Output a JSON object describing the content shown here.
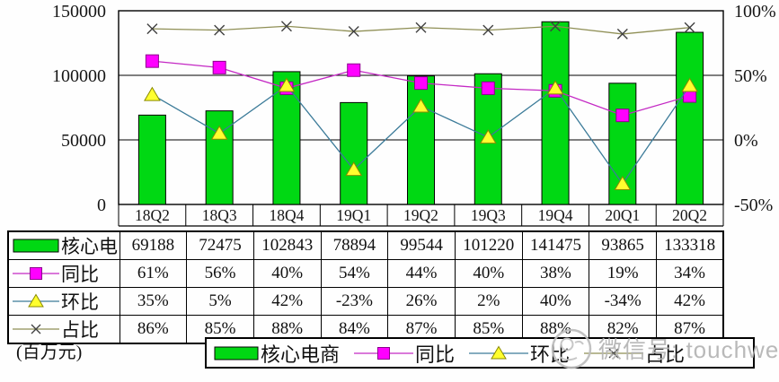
{
  "unit_label": "(百万元)",
  "watermark": {
    "icon": "wechat-stamp-icon",
    "text": "微信号: touchweb"
  },
  "chart_data": {
    "type": "bar+line combo",
    "categories": [
      "18Q2",
      "18Q3",
      "18Q4",
      "19Q1",
      "19Q2",
      "19Q3",
      "19Q4",
      "20Q1",
      "20Q2"
    ],
    "series": [
      {
        "name": "核心电商",
        "type": "bar",
        "axis": "left",
        "marker": "bar",
        "values": [
          69188,
          72475,
          102843,
          78894,
          99544,
          101220,
          141475,
          93865,
          133318
        ],
        "color": "#00d813",
        "edge_color": "#000000"
      },
      {
        "name": "同比",
        "type": "line",
        "axis": "right",
        "marker": "square",
        "values": [
          61,
          56,
          40,
          54,
          44,
          40,
          38,
          19,
          34
        ],
        "line_color": "#c429c4",
        "marker_color": "#ff00ff",
        "marker_edge": "#8b008b"
      },
      {
        "name": "环比",
        "type": "line",
        "axis": "right",
        "marker": "triangle",
        "values": [
          35,
          5,
          42,
          -23,
          26,
          2,
          40,
          -34,
          42
        ],
        "line_color": "#3c7b99",
        "marker_color": "#ffff2e",
        "marker_edge": "#8a8a00"
      },
      {
        "name": "占比",
        "type": "line",
        "axis": "right",
        "marker": "x",
        "values": [
          86,
          85,
          88,
          84,
          87,
          85,
          88,
          82,
          87
        ],
        "line_color": "#8f8f55",
        "marker_color": "#404040"
      }
    ],
    "left_axis": {
      "min": 0,
      "max": 150000,
      "ticks": [
        0,
        50000,
        100000,
        150000
      ],
      "tick_labels": [
        "0",
        "50000",
        "100000",
        "150000"
      ]
    },
    "right_axis": {
      "min": -50,
      "max": 100,
      "ticks": [
        -50,
        0,
        50,
        100
      ],
      "tick_labels": [
        "-50%",
        "0%",
        "50%",
        "100%"
      ]
    },
    "grid": true,
    "legend_position": "bottom"
  },
  "table": {
    "row_labels": [
      "核心电",
      "同比",
      "环比",
      "占比"
    ],
    "rows": [
      [
        "69188",
        "72475",
        "102843",
        "78894",
        "99544",
        "101220",
        "141475",
        "93865",
        "133318"
      ],
      [
        "61%",
        "56%",
        "40%",
        "54%",
        "44%",
        "40%",
        "38%",
        "19%",
        "34%"
      ],
      [
        "35%",
        "5%",
        "42%",
        "-23%",
        "26%",
        "2%",
        "40%",
        "-34%",
        "42%"
      ],
      [
        "86%",
        "85%",
        "88%",
        "84%",
        "87%",
        "85%",
        "88%",
        "82%",
        "87%"
      ]
    ]
  },
  "legend": {
    "items": [
      "核心电商",
      "同比",
      "环比",
      "占比"
    ]
  }
}
